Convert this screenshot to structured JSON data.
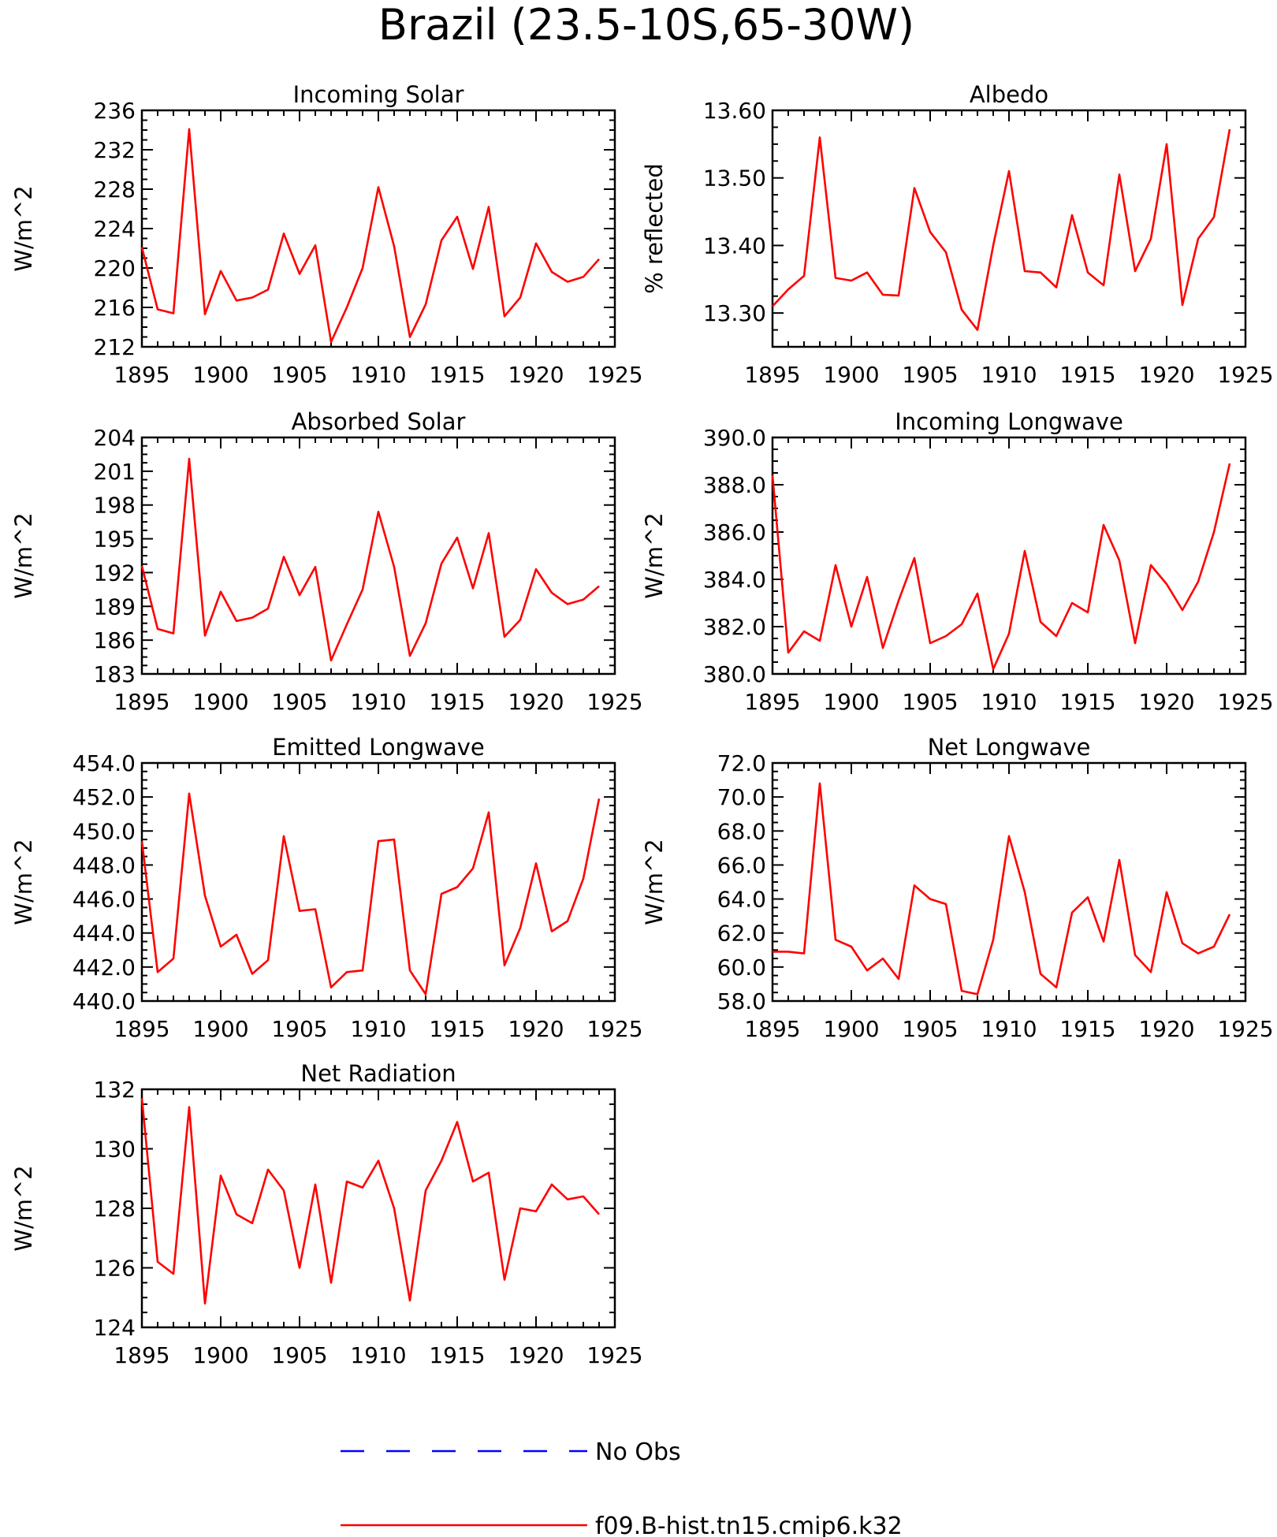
{
  "title": "Brazil (23.5-10S,65-30W)",
  "legend": {
    "items": [
      {
        "label": "No Obs",
        "color": "#0000ff",
        "style": "dashed"
      },
      {
        "label": "f09.B-hist.tn15.cmip6.k32",
        "color": "#ff0000",
        "style": "solid"
      }
    ]
  },
  "chart_data": [
    {
      "type": "line",
      "title": "Incoming Solar",
      "ylabel": "W/m^2",
      "xlim": [
        1895,
        1925
      ],
      "ylim": [
        212,
        236
      ],
      "x_ticks": [
        "1895",
        "1900",
        "1905",
        "1910",
        "1915",
        "1920",
        "1925"
      ],
      "y_ticks": [
        "212",
        "216",
        "220",
        "224",
        "228",
        "232",
        "236"
      ],
      "x": [
        1895,
        1896,
        1897,
        1898,
        1899,
        1900,
        1901,
        1902,
        1903,
        1904,
        1905,
        1906,
        1907,
        1908,
        1909,
        1910,
        1911,
        1912,
        1913,
        1914,
        1915,
        1916,
        1917,
        1918,
        1919,
        1920,
        1921,
        1922,
        1923,
        1924
      ],
      "series": [
        {
          "color": "#ff0000",
          "values": [
            222.1,
            215.8,
            215.4,
            234.1,
            215.3,
            219.7,
            216.7,
            217.0,
            217.8,
            223.5,
            219.4,
            222.3,
            212.5,
            216.0,
            220.0,
            228.2,
            222.2,
            213.0,
            216.3,
            222.8,
            225.2,
            219.9,
            226.2,
            215.1,
            217.0,
            222.5,
            219.6,
            218.6,
            219.1,
            220.9
          ]
        }
      ]
    },
    {
      "type": "line",
      "title": "Albedo",
      "ylabel": "% reflected",
      "xlim": [
        1895,
        1925
      ],
      "ylim": [
        13.25,
        13.6
      ],
      "x_ticks": [
        "1895",
        "1900",
        "1905",
        "1910",
        "1915",
        "1920",
        "1925"
      ],
      "y_ticks": [
        "13.30",
        "13.40",
        "13.50",
        "13.60"
      ],
      "y_tick_values": [
        13.3,
        13.4,
        13.5,
        13.6
      ],
      "x": [
        1895,
        1896,
        1897,
        1898,
        1899,
        1900,
        1901,
        1902,
        1903,
        1904,
        1905,
        1906,
        1907,
        1908,
        1909,
        1910,
        1911,
        1912,
        1913,
        1914,
        1915,
        1916,
        1917,
        1918,
        1919,
        1920,
        1921,
        1922,
        1923,
        1924
      ],
      "series": [
        {
          "color": "#ff0000",
          "values": [
            13.31,
            13.335,
            13.355,
            13.56,
            13.352,
            13.348,
            13.36,
            13.327,
            13.326,
            13.485,
            13.42,
            13.39,
            13.305,
            13.275,
            13.4,
            13.51,
            13.362,
            13.36,
            13.338,
            13.445,
            13.36,
            13.341,
            13.505,
            13.362,
            13.41,
            13.55,
            13.312,
            13.41,
            13.442,
            13.572
          ]
        }
      ]
    },
    {
      "type": "line",
      "title": "Absorbed Solar",
      "ylabel": "W/m^2",
      "xlim": [
        1895,
        1925
      ],
      "ylim": [
        183,
        204
      ],
      "x_ticks": [
        "1895",
        "1900",
        "1905",
        "1910",
        "1915",
        "1920",
        "1925"
      ],
      "y_ticks": [
        "183",
        "186",
        "189",
        "192",
        "195",
        "198",
        "201",
        "204"
      ],
      "x": [
        1895,
        1896,
        1897,
        1898,
        1899,
        1900,
        1901,
        1902,
        1903,
        1904,
        1905,
        1906,
        1907,
        1908,
        1909,
        1910,
        1911,
        1912,
        1913,
        1914,
        1915,
        1916,
        1917,
        1918,
        1919,
        1920,
        1921,
        1922,
        1923,
        1924
      ],
      "series": [
        {
          "color": "#ff0000",
          "values": [
            192.6,
            187.0,
            186.6,
            202.1,
            186.4,
            190.3,
            187.7,
            188.0,
            188.8,
            193.4,
            190.0,
            192.5,
            184.2,
            187.4,
            190.5,
            197.4,
            192.5,
            184.6,
            187.5,
            192.8,
            195.1,
            190.6,
            195.5,
            186.3,
            187.8,
            192.3,
            190.2,
            189.2,
            189.6,
            190.8
          ]
        }
      ]
    },
    {
      "type": "line",
      "title": "Incoming Longwave",
      "ylabel": "W/m^2",
      "xlim": [
        1895,
        1925
      ],
      "ylim": [
        380,
        390
      ],
      "x_ticks": [
        "1895",
        "1900",
        "1905",
        "1910",
        "1915",
        "1920",
        "1925"
      ],
      "y_ticks": [
        "380.0",
        "382.0",
        "384.0",
        "386.0",
        "388.0",
        "390.0"
      ],
      "y_tick_values": [
        380,
        382,
        384,
        386,
        388,
        390
      ],
      "x": [
        1895,
        1896,
        1897,
        1898,
        1899,
        1900,
        1901,
        1902,
        1903,
        1904,
        1905,
        1906,
        1907,
        1908,
        1909,
        1910,
        1911,
        1912,
        1913,
        1914,
        1915,
        1916,
        1917,
        1918,
        1919,
        1920,
        1921,
        1922,
        1923,
        1924
      ],
      "series": [
        {
          "color": "#ff0000",
          "values": [
            388.4,
            380.9,
            381.8,
            381.4,
            384.6,
            382.0,
            384.1,
            381.1,
            383.1,
            384.9,
            381.3,
            381.6,
            382.1,
            383.4,
            380.2,
            381.7,
            385.2,
            382.2,
            381.6,
            383.0,
            382.6,
            386.3,
            384.8,
            381.3,
            384.6,
            383.8,
            382.7,
            383.9,
            386.0,
            388.9
          ]
        }
      ]
    },
    {
      "type": "line",
      "title": "Emitted Longwave",
      "ylabel": "W/m^2",
      "xlim": [
        1895,
        1925
      ],
      "ylim": [
        440,
        454
      ],
      "x_ticks": [
        "1895",
        "1900",
        "1905",
        "1910",
        "1915",
        "1920",
        "1925"
      ],
      "y_ticks": [
        "440.0",
        "442.0",
        "444.0",
        "446.0",
        "448.0",
        "450.0",
        "452.0",
        "454.0"
      ],
      "y_tick_values": [
        440,
        442,
        444,
        446,
        448,
        450,
        452,
        454
      ],
      "x": [
        1895,
        1896,
        1897,
        1898,
        1899,
        1900,
        1901,
        1902,
        1903,
        1904,
        1905,
        1906,
        1907,
        1908,
        1909,
        1910,
        1911,
        1912,
        1913,
        1914,
        1915,
        1916,
        1917,
        1918,
        1919,
        1920,
        1921,
        1922,
        1923,
        1924
      ],
      "series": [
        {
          "color": "#ff0000",
          "values": [
            449.4,
            441.7,
            442.5,
            452.2,
            446.2,
            443.2,
            443.9,
            441.6,
            442.4,
            449.7,
            445.3,
            445.4,
            440.8,
            441.7,
            441.8,
            449.4,
            449.5,
            441.8,
            440.4,
            446.3,
            446.7,
            447.8,
            451.1,
            442.1,
            444.3,
            448.1,
            444.1,
            444.7,
            447.2,
            451.9
          ]
        }
      ]
    },
    {
      "type": "line",
      "title": "Net Longwave",
      "ylabel": "W/m^2",
      "xlim": [
        1895,
        1925
      ],
      "ylim": [
        58,
        72
      ],
      "x_ticks": [
        "1895",
        "1900",
        "1905",
        "1910",
        "1915",
        "1920",
        "1925"
      ],
      "y_ticks": [
        "58.0",
        "60.0",
        "62.0",
        "64.0",
        "66.0",
        "68.0",
        "70.0",
        "72.0"
      ],
      "y_tick_values": [
        58,
        60,
        62,
        64,
        66,
        68,
        70,
        72
      ],
      "x": [
        1895,
        1896,
        1897,
        1898,
        1899,
        1900,
        1901,
        1902,
        1903,
        1904,
        1905,
        1906,
        1907,
        1908,
        1909,
        1910,
        1911,
        1912,
        1913,
        1914,
        1915,
        1916,
        1917,
        1918,
        1919,
        1920,
        1921,
        1922,
        1923,
        1924
      ],
      "series": [
        {
          "color": "#ff0000",
          "values": [
            60.9,
            60.9,
            60.8,
            70.8,
            61.6,
            61.2,
            59.8,
            60.5,
            59.3,
            64.8,
            64.0,
            63.7,
            58.6,
            58.4,
            61.6,
            67.7,
            64.4,
            59.6,
            58.8,
            63.2,
            64.1,
            61.5,
            66.3,
            60.7,
            59.7,
            64.4,
            61.4,
            60.8,
            61.2,
            63.1
          ]
        }
      ]
    },
    {
      "type": "line",
      "title": "Net Radiation",
      "ylabel": "W/m^2",
      "xlim": [
        1895,
        1925
      ],
      "ylim": [
        124,
        132
      ],
      "x_ticks": [
        "1895",
        "1900",
        "1905",
        "1910",
        "1915",
        "1920",
        "1925"
      ],
      "y_ticks": [
        "124",
        "126",
        "128",
        "130",
        "132"
      ],
      "x": [
        1895,
        1896,
        1897,
        1898,
        1899,
        1900,
        1901,
        1902,
        1903,
        1904,
        1905,
        1906,
        1907,
        1908,
        1909,
        1910,
        1911,
        1912,
        1913,
        1914,
        1915,
        1916,
        1917,
        1918,
        1919,
        1920,
        1921,
        1922,
        1923,
        1924
      ],
      "series": [
        {
          "color": "#ff0000",
          "values": [
            131.7,
            126.2,
            125.8,
            131.4,
            124.8,
            129.1,
            127.8,
            127.5,
            129.3,
            128.6,
            126.0,
            128.8,
            125.5,
            128.9,
            128.7,
            129.6,
            128.0,
            124.9,
            128.6,
            129.6,
            130.9,
            128.9,
            129.2,
            125.6,
            128.0,
            127.9,
            128.8,
            128.3,
            128.4,
            127.8
          ]
        }
      ]
    }
  ]
}
